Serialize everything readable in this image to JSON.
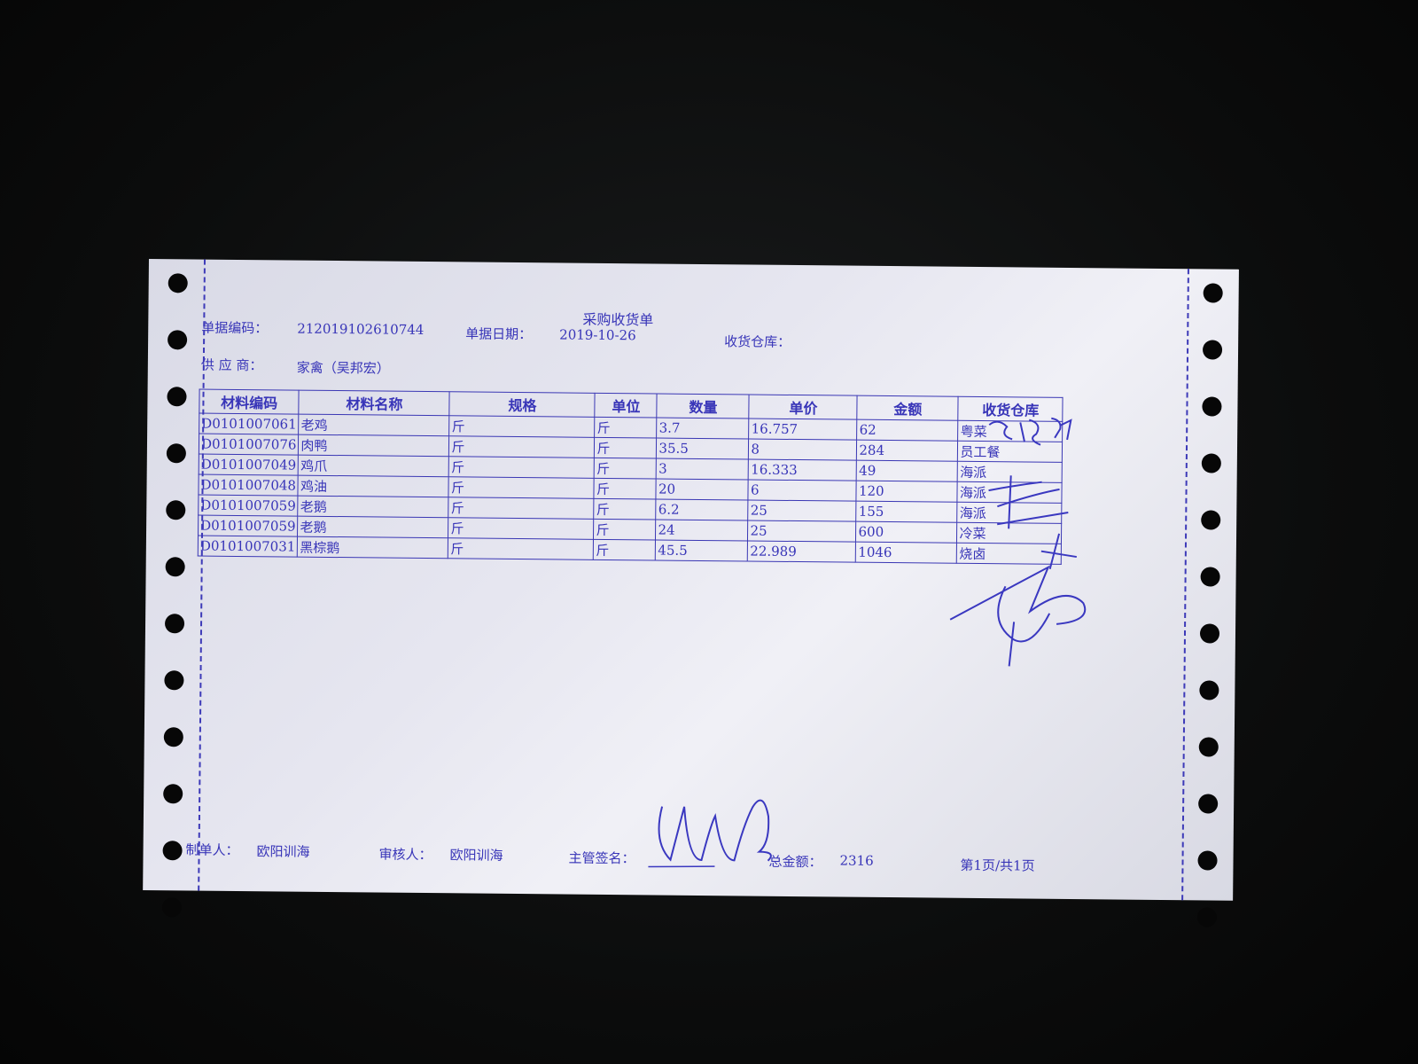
{
  "document": {
    "title": "采购收货单",
    "doc_no_label": "单据编码：",
    "doc_no": "212019102610744",
    "date_label": "单据日期：",
    "date": "2019-10-26",
    "warehouse_label": "收货仓库：",
    "supplier_label": "供 应 商：",
    "supplier": "家禽（吴邦宏）"
  },
  "table": {
    "headers": [
      "材料编码",
      "材料名称",
      "规格",
      "单位",
      "数量",
      "单价",
      "金额",
      "收货仓库"
    ],
    "rows": [
      [
        "D0101007061",
        "老鸡",
        "斤",
        "斤",
        "3.7",
        "16.757",
        "62",
        "粤菜"
      ],
      [
        "D0101007076",
        "肉鸭",
        "斤",
        "斤",
        "35.5",
        "8",
        "284",
        "员工餐"
      ],
      [
        "D0101007049",
        "鸡爪",
        "斤",
        "斤",
        "3",
        "16.333",
        "49",
        "海派"
      ],
      [
        "D0101007048",
        "鸡油",
        "斤",
        "斤",
        "20",
        "6",
        "120",
        "海派"
      ],
      [
        "D0101007059",
        "老鹅",
        "斤",
        "斤",
        "6.2",
        "25",
        "155",
        "海派"
      ],
      [
        "D0101007059",
        "老鹅",
        "斤",
        "斤",
        "24",
        "25",
        "600",
        "冷菜"
      ],
      [
        "D0101007031",
        "黑棕鹅",
        "斤",
        "斤",
        "45.5",
        "22.989",
        "1046",
        "烧卤"
      ]
    ]
  },
  "footer": {
    "maker_label": "制单人：",
    "maker": "欧阳训海",
    "reviewer_label": "审核人：",
    "reviewer": "欧阳训海",
    "supervisor_label": "主管签名：",
    "total_label": "总金额：",
    "total": "2316",
    "page": "第1页/共1页"
  },
  "colors": {
    "ink": "#3835b8",
    "paper": "#e6e6f0",
    "background": "#0b0c0c"
  }
}
